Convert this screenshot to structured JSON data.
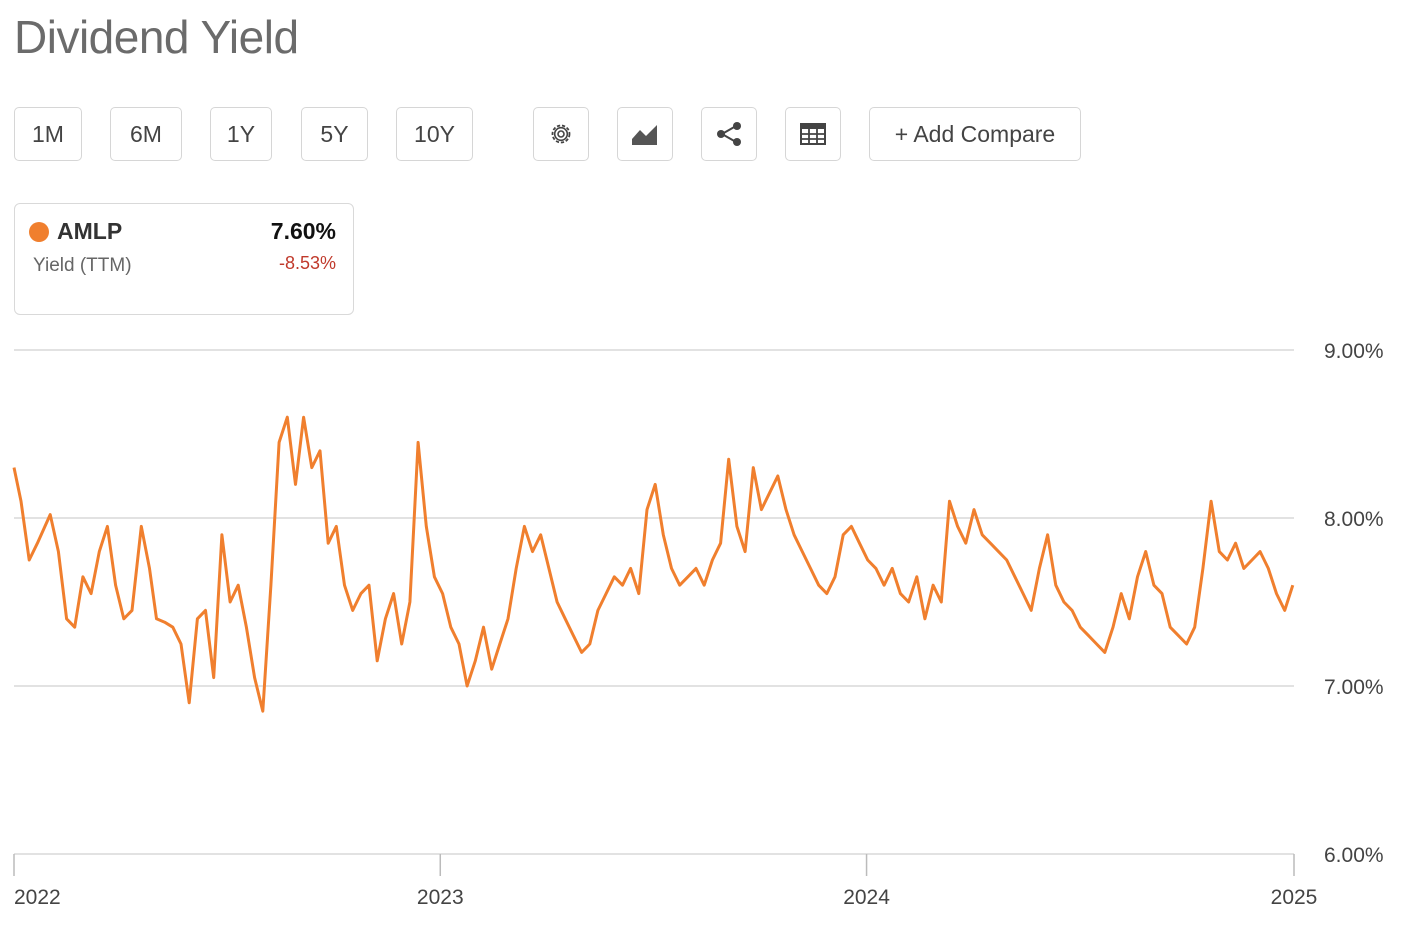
{
  "title": "Dividend Yield",
  "toolbar": {
    "ranges": [
      "1M",
      "6M",
      "1Y",
      "5Y",
      "10Y"
    ],
    "icons": [
      "gear-icon",
      "chart-type-icon",
      "share-icon",
      "table-icon"
    ],
    "add_compare": "+ Add Compare"
  },
  "legend": {
    "ticker": "AMLP",
    "subtitle": "Yield (TTM)",
    "value": "7.60%",
    "change": "-8.53%",
    "color": "#f07f2e",
    "change_color": "#c0392b"
  },
  "chart_data": {
    "type": "line",
    "x_range": [
      "2022-01-01",
      "2025-01-01"
    ],
    "x_ticks": [
      "2022",
      "2023",
      "2024",
      "2025"
    ],
    "y_ticks": [
      "9.00%",
      "8.00%",
      "7.00%",
      "6.00%"
    ],
    "ylim": [
      6.0,
      9.0
    ],
    "grid": true,
    "series": [
      {
        "name": "AMLP",
        "color": "#f07f2e",
        "points": [
          [
            "2022-01-01",
            8.3
          ],
          [
            "2022-01-07",
            8.1
          ],
          [
            "2022-01-14",
            7.75
          ],
          [
            "2022-01-21",
            7.85
          ],
          [
            "2022-02-01",
            8.02
          ],
          [
            "2022-02-08",
            7.8
          ],
          [
            "2022-02-15",
            7.4
          ],
          [
            "2022-02-22",
            7.35
          ],
          [
            "2022-03-01",
            7.65
          ],
          [
            "2022-03-08",
            7.55
          ],
          [
            "2022-03-15",
            7.8
          ],
          [
            "2022-03-22",
            7.95
          ],
          [
            "2022-03-29",
            7.6
          ],
          [
            "2022-04-05",
            7.4
          ],
          [
            "2022-04-12",
            7.45
          ],
          [
            "2022-04-20",
            7.95
          ],
          [
            "2022-04-27",
            7.7
          ],
          [
            "2022-05-03",
            7.4
          ],
          [
            "2022-05-10",
            7.38
          ],
          [
            "2022-05-17",
            7.35
          ],
          [
            "2022-05-24",
            7.25
          ],
          [
            "2022-05-31",
            6.9
          ],
          [
            "2022-06-07",
            7.4
          ],
          [
            "2022-06-14",
            7.45
          ],
          [
            "2022-06-21",
            7.05
          ],
          [
            "2022-06-28",
            7.9
          ],
          [
            "2022-07-05",
            7.5
          ],
          [
            "2022-07-12",
            7.6
          ],
          [
            "2022-07-19",
            7.35
          ],
          [
            "2022-07-26",
            7.05
          ],
          [
            "2022-08-02",
            6.85
          ],
          [
            "2022-08-09",
            7.6
          ],
          [
            "2022-08-16",
            8.45
          ],
          [
            "2022-08-23",
            8.6
          ],
          [
            "2022-08-30",
            8.2
          ],
          [
            "2022-09-06",
            8.6
          ],
          [
            "2022-09-13",
            8.3
          ],
          [
            "2022-09-20",
            8.4
          ],
          [
            "2022-09-27",
            7.85
          ],
          [
            "2022-10-04",
            7.95
          ],
          [
            "2022-10-11",
            7.6
          ],
          [
            "2022-10-18",
            7.45
          ],
          [
            "2022-10-25",
            7.55
          ],
          [
            "2022-11-01",
            7.6
          ],
          [
            "2022-11-08",
            7.15
          ],
          [
            "2022-11-15",
            7.4
          ],
          [
            "2022-11-22",
            7.55
          ],
          [
            "2022-11-29",
            7.25
          ],
          [
            "2022-12-06",
            7.5
          ],
          [
            "2022-12-13",
            8.45
          ],
          [
            "2022-12-20",
            7.95
          ],
          [
            "2022-12-27",
            7.65
          ],
          [
            "2023-01-03",
            7.55
          ],
          [
            "2023-01-10",
            7.35
          ],
          [
            "2023-01-17",
            7.25
          ],
          [
            "2023-01-24",
            7.0
          ],
          [
            "2023-01-31",
            7.15
          ],
          [
            "2023-02-07",
            7.35
          ],
          [
            "2023-02-14",
            7.1
          ],
          [
            "2023-02-21",
            7.25
          ],
          [
            "2023-02-28",
            7.4
          ],
          [
            "2023-03-07",
            7.7
          ],
          [
            "2023-03-14",
            7.95
          ],
          [
            "2023-03-21",
            7.8
          ],
          [
            "2023-03-28",
            7.9
          ],
          [
            "2023-04-04",
            7.7
          ],
          [
            "2023-04-11",
            7.5
          ],
          [
            "2023-04-18",
            7.4
          ],
          [
            "2023-04-25",
            7.3
          ],
          [
            "2023-05-02",
            7.2
          ],
          [
            "2023-05-09",
            7.25
          ],
          [
            "2023-05-16",
            7.45
          ],
          [
            "2023-05-23",
            7.55
          ],
          [
            "2023-05-30",
            7.65
          ],
          [
            "2023-06-06",
            7.6
          ],
          [
            "2023-06-13",
            7.7
          ],
          [
            "2023-06-20",
            7.55
          ],
          [
            "2023-06-27",
            8.05
          ],
          [
            "2023-07-04",
            8.2
          ],
          [
            "2023-07-11",
            7.9
          ],
          [
            "2023-07-18",
            7.7
          ],
          [
            "2023-07-25",
            7.6
          ],
          [
            "2023-08-01",
            7.65
          ],
          [
            "2023-08-08",
            7.7
          ],
          [
            "2023-08-15",
            7.6
          ],
          [
            "2023-08-22",
            7.75
          ],
          [
            "2023-08-29",
            7.85
          ],
          [
            "2023-09-05",
            8.35
          ],
          [
            "2023-09-12",
            7.95
          ],
          [
            "2023-09-19",
            7.8
          ],
          [
            "2023-09-26",
            8.3
          ],
          [
            "2023-10-03",
            8.05
          ],
          [
            "2023-10-10",
            8.15
          ],
          [
            "2023-10-17",
            8.25
          ],
          [
            "2023-10-24",
            8.05
          ],
          [
            "2023-10-31",
            7.9
          ],
          [
            "2023-11-07",
            7.8
          ],
          [
            "2023-11-14",
            7.7
          ],
          [
            "2023-11-21",
            7.6
          ],
          [
            "2023-11-28",
            7.55
          ],
          [
            "2023-12-05",
            7.65
          ],
          [
            "2023-12-12",
            7.9
          ],
          [
            "2023-12-19",
            7.95
          ],
          [
            "2023-12-26",
            7.85
          ],
          [
            "2024-01-02",
            7.75
          ],
          [
            "2024-01-09",
            7.7
          ],
          [
            "2024-01-16",
            7.6
          ],
          [
            "2024-01-23",
            7.7
          ],
          [
            "2024-01-30",
            7.55
          ],
          [
            "2024-02-06",
            7.5
          ],
          [
            "2024-02-13",
            7.65
          ],
          [
            "2024-02-20",
            7.4
          ],
          [
            "2024-02-27",
            7.6
          ],
          [
            "2024-03-05",
            7.5
          ],
          [
            "2024-03-12",
            8.1
          ],
          [
            "2024-03-19",
            7.95
          ],
          [
            "2024-03-26",
            7.85
          ],
          [
            "2024-04-02",
            8.05
          ],
          [
            "2024-04-09",
            7.9
          ],
          [
            "2024-04-16",
            7.85
          ],
          [
            "2024-04-23",
            7.8
          ],
          [
            "2024-04-30",
            7.75
          ],
          [
            "2024-05-07",
            7.65
          ],
          [
            "2024-05-14",
            7.55
          ],
          [
            "2024-05-21",
            7.45
          ],
          [
            "2024-05-28",
            7.7
          ],
          [
            "2024-06-04",
            7.9
          ],
          [
            "2024-06-11",
            7.6
          ],
          [
            "2024-06-18",
            7.5
          ],
          [
            "2024-06-25",
            7.45
          ],
          [
            "2024-07-02",
            7.35
          ],
          [
            "2024-07-09",
            7.3
          ],
          [
            "2024-07-16",
            7.25
          ],
          [
            "2024-07-23",
            7.2
          ],
          [
            "2024-07-30",
            7.35
          ],
          [
            "2024-08-06",
            7.55
          ],
          [
            "2024-08-13",
            7.4
          ],
          [
            "2024-08-20",
            7.65
          ],
          [
            "2024-08-27",
            7.8
          ],
          [
            "2024-09-03",
            7.6
          ],
          [
            "2024-09-10",
            7.55
          ],
          [
            "2024-09-17",
            7.35
          ],
          [
            "2024-09-24",
            7.3
          ],
          [
            "2024-10-01",
            7.25
          ],
          [
            "2024-10-08",
            7.35
          ],
          [
            "2024-10-15",
            7.7
          ],
          [
            "2024-10-22",
            8.1
          ],
          [
            "2024-10-29",
            7.8
          ],
          [
            "2024-11-05",
            7.75
          ],
          [
            "2024-11-12",
            7.85
          ],
          [
            "2024-11-19",
            7.7
          ],
          [
            "2024-11-26",
            7.75
          ],
          [
            "2024-12-03",
            7.8
          ],
          [
            "2024-12-10",
            7.7
          ],
          [
            "2024-12-17",
            7.55
          ],
          [
            "2024-12-24",
            7.45
          ],
          [
            "2024-12-31",
            7.6
          ]
        ]
      }
    ]
  }
}
